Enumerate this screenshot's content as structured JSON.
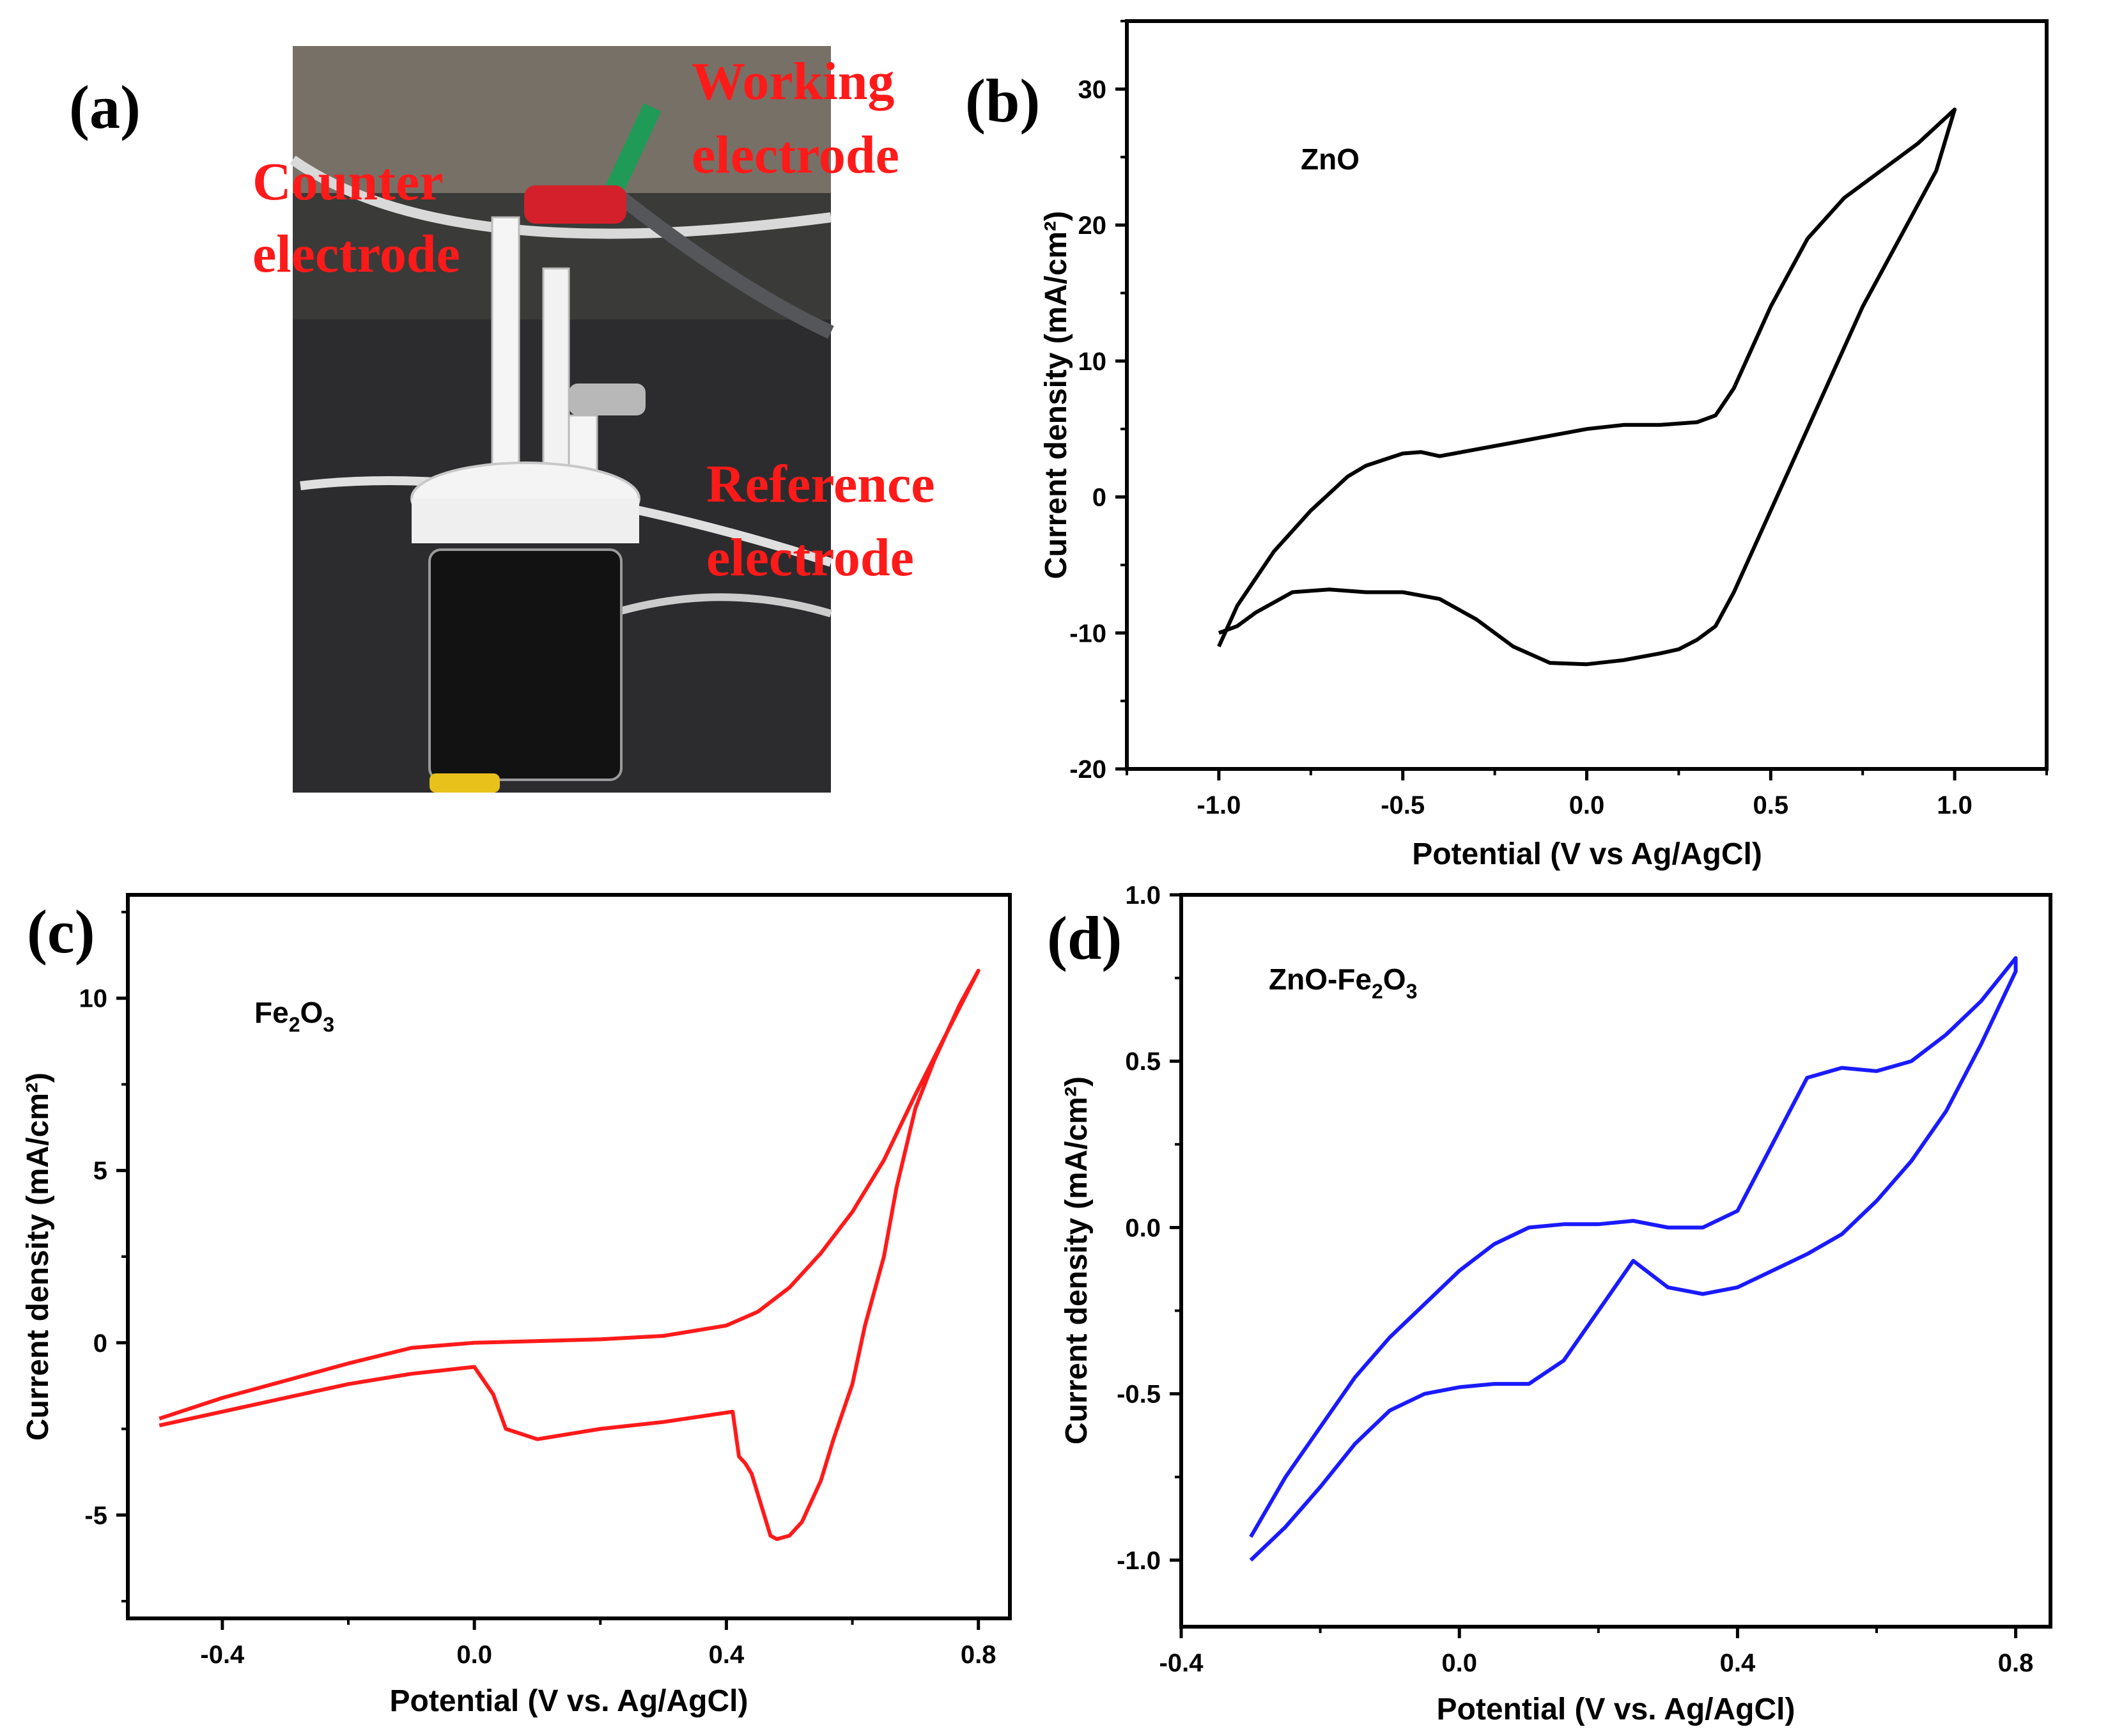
{
  "photo": {
    "letter": "(a)",
    "labels": [
      {
        "line1": "Counter",
        "line2": "electrode"
      },
      {
        "line1": "Working",
        "line2": "electrode"
      },
      {
        "line1": "Reference",
        "line2": "electrode"
      }
    ]
  },
  "colors": {
    "b": "#000000",
    "c": "#ff1a1a",
    "d": "#1a1aff",
    "photo_label": "#ff1a1a"
  },
  "chart_data": [
    {
      "id": "b",
      "letter": "(b)",
      "type": "line",
      "annotation": "ZnO",
      "xlabel": "Potential (V vs Ag/AgCl)",
      "ylabel": "Current density (mA/cm²)",
      "xlim": [
        -1.25,
        1.25
      ],
      "ylim": [
        -20,
        35
      ],
      "xticks": [
        -1.0,
        -0.5,
        0.0,
        0.5,
        1.0
      ],
      "xtick_labels": [
        "-1.0",
        "-0.5",
        "0.0",
        "0.5",
        "1.0"
      ],
      "yticks": [
        -20,
        -10,
        0,
        10,
        20,
        30
      ],
      "ytick_labels": [
        "-20",
        "-10",
        "0",
        "10",
        "20",
        "30"
      ],
      "series": [
        {
          "name": "ZnO",
          "color": "#000000",
          "x": [
            -1.0,
            -0.95,
            -0.85,
            -0.75,
            -0.65,
            -0.6,
            -0.5,
            -0.45,
            -0.4,
            -0.3,
            -0.2,
            -0.1,
            0.0,
            0.1,
            0.2,
            0.3,
            0.35,
            0.4,
            0.5,
            0.6,
            0.7,
            0.8,
            0.9,
            1.0,
            0.95,
            0.85,
            0.75,
            0.65,
            0.55,
            0.45,
            0.4,
            0.35,
            0.3,
            0.25,
            0.2,
            0.1,
            0.0,
            -0.1,
            -0.2,
            -0.3,
            -0.4,
            -0.5,
            -0.6,
            -0.7,
            -0.8,
            -0.9,
            -0.95,
            -1.0
          ],
          "y": [
            -11,
            -8,
            -4,
            -1,
            1.5,
            2.3,
            3.2,
            3.3,
            3.0,
            3.5,
            4.0,
            4.5,
            5.0,
            5.3,
            5.3,
            5.5,
            6.0,
            8.0,
            14,
            19,
            22,
            24,
            26,
            28.5,
            24,
            19,
            14,
            8,
            2,
            -4,
            -7,
            -9.5,
            -10.5,
            -11.2,
            -11.5,
            -12,
            -12.3,
            -12.2,
            -11,
            -9,
            -7.5,
            -7.0,
            -7.0,
            -6.8,
            -7.0,
            -8.5,
            -9.5,
            -10
          ]
        }
      ]
    },
    {
      "id": "c",
      "letter": "(c)",
      "type": "line",
      "annotation": "Fe2O3",
      "annotation_parts": {
        "a": "Fe",
        "a_sub": "2",
        "b": "O",
        "b_sub": "3"
      },
      "xlabel": "Potential (V vs. Ag/AgCl)",
      "ylabel": "Current density (mA/cm²)",
      "xlim": [
        -0.55,
        0.85
      ],
      "ylim": [
        -8,
        13
      ],
      "xticks": [
        -0.4,
        0.0,
        0.4,
        0.8
      ],
      "xtick_labels": [
        "-0.4",
        "0.0",
        "0.4",
        "0.8"
      ],
      "yticks": [
        -5,
        0,
        5,
        10
      ],
      "ytick_labels": [
        "-5",
        "0",
        "5",
        "10"
      ],
      "series": [
        {
          "name": "Fe2O3",
          "color": "#ff1a1a",
          "x": [
            -0.5,
            -0.4,
            -0.3,
            -0.2,
            -0.1,
            0.0,
            0.1,
            0.2,
            0.3,
            0.4,
            0.45,
            0.5,
            0.55,
            0.6,
            0.65,
            0.7,
            0.75,
            0.8,
            0.77,
            0.73,
            0.7,
            0.67,
            0.65,
            0.62,
            0.6,
            0.57,
            0.55,
            0.52,
            0.5,
            0.48,
            0.47,
            0.46,
            0.44,
            0.43,
            0.42,
            0.41,
            0.3,
            0.2,
            0.1,
            0.05,
            0.03,
            0.0,
            -0.1,
            -0.2,
            -0.3,
            -0.4,
            -0.5
          ],
          "y": [
            -2.2,
            -1.6,
            -1.1,
            -0.6,
            -0.15,
            0.0,
            0.05,
            0.1,
            0.2,
            0.5,
            0.9,
            1.6,
            2.6,
            3.8,
            5.3,
            7.2,
            9.0,
            10.8,
            9.8,
            8.2,
            6.8,
            4.5,
            2.5,
            0.5,
            -1.2,
            -2.8,
            -4.0,
            -5.2,
            -5.6,
            -5.7,
            -5.6,
            -5.0,
            -3.8,
            -3.5,
            -3.3,
            -2.0,
            -2.3,
            -2.5,
            -2.8,
            -2.5,
            -1.5,
            -0.7,
            -0.9,
            -1.2,
            -1.6,
            -2.0,
            -2.4
          ]
        }
      ]
    },
    {
      "id": "d",
      "letter": "(d)",
      "type": "line",
      "annotation": "ZnO-Fe2O3",
      "annotation_parts": {
        "a": "ZnO-Fe",
        "a_sub": "2",
        "b": "O",
        "b_sub": "3"
      },
      "xlabel": "Potential (V vs. Ag/AgCl)",
      "ylabel": "Current density (mA/cm²)",
      "xlim": [
        -0.4,
        0.85
      ],
      "ylim": [
        -1.2,
        1.0
      ],
      "xticks": [
        -0.4,
        0.0,
        0.4,
        0.8
      ],
      "xtick_labels": [
        "-0.4",
        "0.0",
        "0.4",
        "0.8"
      ],
      "yticks": [
        -1.0,
        -0.5,
        0.0,
        0.5,
        1.0
      ],
      "ytick_labels": [
        "-1.0",
        "-0.5",
        "0.0",
        "0.5",
        "1.0"
      ],
      "series": [
        {
          "name": "ZnO-Fe2O3",
          "color": "#1a1aff",
          "x": [
            -0.3,
            -0.25,
            -0.2,
            -0.15,
            -0.1,
            -0.05,
            0.0,
            0.05,
            0.1,
            0.15,
            0.2,
            0.25,
            0.3,
            0.35,
            0.4,
            0.45,
            0.5,
            0.55,
            0.6,
            0.65,
            0.7,
            0.75,
            0.8,
            0.8,
            0.75,
            0.7,
            0.65,
            0.6,
            0.55,
            0.5,
            0.45,
            0.4,
            0.35,
            0.3,
            0.25,
            0.2,
            0.15,
            0.1,
            0.05,
            0.0,
            -0.05,
            -0.1,
            -0.15,
            -0.2,
            -0.25,
            -0.3
          ],
          "y": [
            -0.93,
            -0.75,
            -0.6,
            -0.45,
            -0.33,
            -0.23,
            -0.13,
            -0.05,
            0.0,
            0.01,
            0.01,
            0.02,
            0.0,
            0.0,
            0.05,
            0.25,
            0.45,
            0.48,
            0.47,
            0.5,
            0.58,
            0.68,
            0.81,
            0.77,
            0.55,
            0.35,
            0.2,
            0.08,
            -0.02,
            -0.08,
            -0.13,
            -0.18,
            -0.2,
            -0.18,
            -0.1,
            -0.25,
            -0.4,
            -0.47,
            -0.47,
            -0.48,
            -0.5,
            -0.55,
            -0.65,
            -0.78,
            -0.9,
            -1.0
          ]
        }
      ]
    }
  ]
}
